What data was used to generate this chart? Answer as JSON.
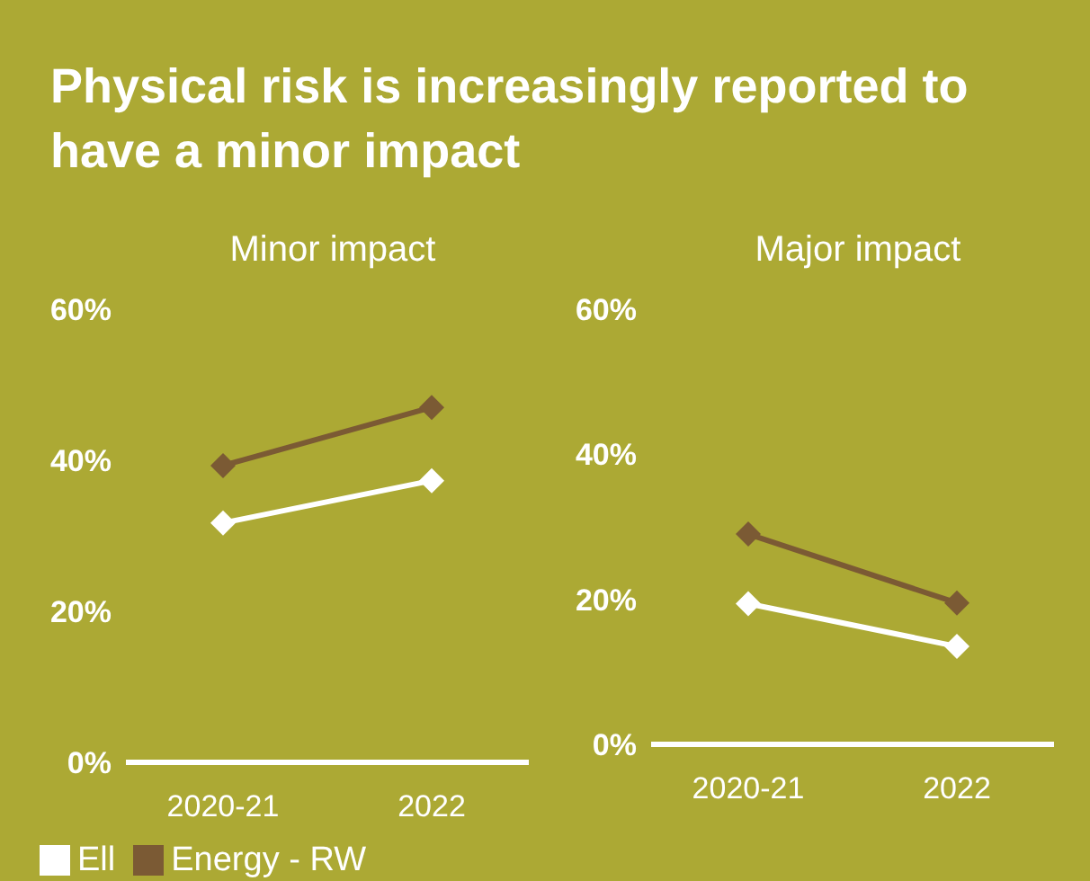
{
  "chart_data": [
    {
      "type": "line",
      "title": "Physical risk is increasingly reported to have a minor impact",
      "subtitle": "Minor impact",
      "categories": [
        "2020-21",
        "2022"
      ],
      "series": [
        {
          "name": "Ell",
          "color": "#ffffff",
          "values": [
            31.7,
            37.3
          ]
        },
        {
          "name": "Energy - RW",
          "color": "#7b5a34",
          "values": [
            39.3,
            47
          ]
        }
      ],
      "ylim": [
        0,
        60
      ],
      "yticks": [
        {
          "value": 0,
          "label": "0%"
        },
        {
          "value": 20,
          "label": "20%"
        },
        {
          "value": 40,
          "label": "40%"
        },
        {
          "value": 60,
          "label": "60%"
        }
      ],
      "marker": "diamond",
      "legend": "bottom"
    },
    {
      "type": "line",
      "subtitle": "Major impact",
      "categories": [
        "2020-21",
        "2022"
      ],
      "series": [
        {
          "color": "#ffffff",
          "values": [
            19.4,
            13.5
          ]
        },
        {
          "color": "#7b5a34",
          "values": [
            29,
            19.5
          ]
        }
      ],
      "ylim": [
        0,
        60
      ],
      "yticks": [
        {
          "value": 0,
          "label": "0%"
        },
        {
          "value": 20,
          "label": "20%"
        },
        {
          "value": 40,
          "label": "40%"
        },
        {
          "value": 60,
          "label": "60%"
        }
      ],
      "marker": "diamond"
    }
  ]
}
